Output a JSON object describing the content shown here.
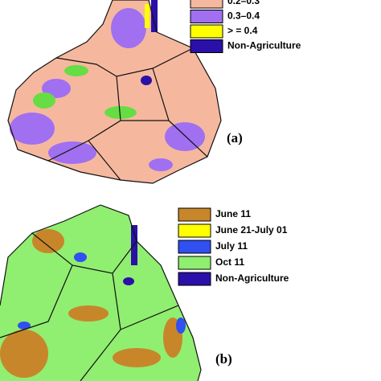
{
  "map_a": {
    "label": "(a)",
    "legend": [
      {
        "label": "0.2–0.3",
        "color": "#f5b89e"
      },
      {
        "label": "0.3–0.4",
        "color": "#a070f0"
      },
      {
        "label": "> = 0.4",
        "color": "#ffff00"
      },
      {
        "label": "Non-Agriculture",
        "color": "#2a10a8"
      }
    ]
  },
  "map_b": {
    "label": "(b)",
    "legend": [
      {
        "label": "June 11",
        "color": "#c8862a"
      },
      {
        "label": "June 21-July 01",
        "color": "#ffff00"
      },
      {
        "label": "July 11",
        "color": "#3050f0"
      },
      {
        "label": "Oct 11",
        "color": "#90ee70"
      },
      {
        "label": "Non-Agriculture",
        "color": "#2a10a8"
      }
    ]
  }
}
